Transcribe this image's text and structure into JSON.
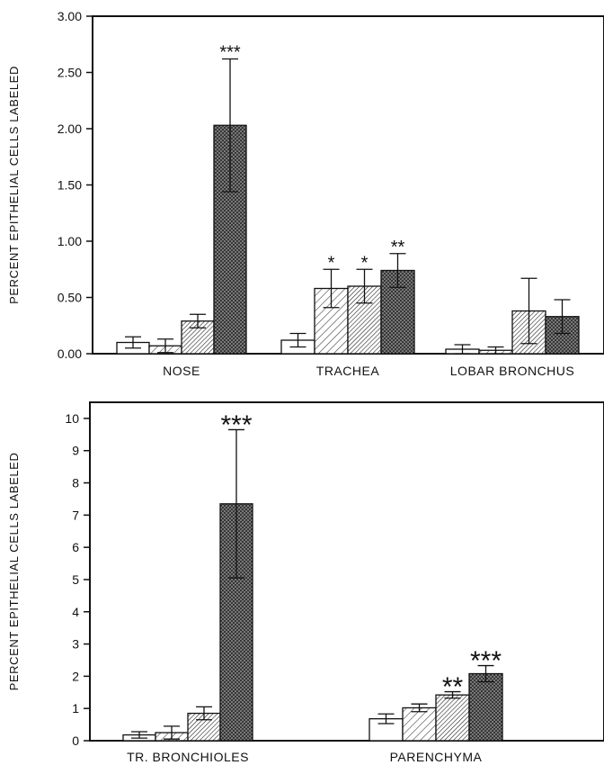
{
  "chart_data": [
    {
      "type": "bar",
      "ylabel": "PERCENT EPITHELIAL CELLS LABELED",
      "xlabel": "",
      "ylim": [
        0,
        3
      ],
      "yticks": [
        "0.00",
        "0.50",
        "1.00",
        "1.50",
        "2.00",
        "2.50",
        "3.00"
      ],
      "categories": [
        "NOSE",
        "TRACHEA",
        "LOBAR BRONCHUS"
      ],
      "series": [
        {
          "fill": "open",
          "values": [
            0.1,
            0.12,
            0.04
          ],
          "errors": [
            0.05,
            0.06,
            0.04
          ]
        },
        {
          "fill": "light-hatched",
          "values": [
            0.07,
            0.58,
            0.03
          ],
          "errors": [
            0.06,
            0.17,
            0.03
          ]
        },
        {
          "fill": "dense-hatched",
          "values": [
            0.29,
            0.6,
            0.38
          ],
          "errors": [
            0.06,
            0.15,
            0.29
          ]
        },
        {
          "fill": "cross-hatched",
          "values": [
            2.03,
            0.74,
            0.33
          ],
          "errors": [
            0.59,
            0.15,
            0.15
          ]
        }
      ],
      "significance": [
        {
          "category": 0,
          "series": 3,
          "label": "***"
        },
        {
          "category": 1,
          "series": 1,
          "label": "*"
        },
        {
          "category": 1,
          "series": 2,
          "label": "*"
        },
        {
          "category": 1,
          "series": 3,
          "label": "**"
        }
      ],
      "grid": false,
      "legend": "none"
    },
    {
      "type": "bar",
      "ylabel": "PERCENT EPITHELIAL CELLS LABELED",
      "xlabel": "",
      "ylim": [
        0,
        10.5
      ],
      "yticks": [
        "0",
        "1",
        "2",
        "3",
        "4",
        "5",
        "6",
        "7",
        "8",
        "9",
        "10"
      ],
      "categories": [
        "TR. BRONCHIOLES",
        "PARENCHYMA"
      ],
      "series": [
        {
          "fill": "open",
          "values": [
            0.18,
            0.68
          ],
          "errors": [
            0.1,
            0.15
          ]
        },
        {
          "fill": "light-hatched",
          "values": [
            0.25,
            1.02
          ],
          "errors": [
            0.2,
            0.12
          ]
        },
        {
          "fill": "dense-hatched",
          "values": [
            0.85,
            1.42
          ],
          "errors": [
            0.2,
            0.1
          ]
        },
        {
          "fill": "cross-hatched",
          "values": [
            7.35,
            2.08
          ],
          "errors": [
            2.3,
            0.25
          ]
        }
      ],
      "significance": [
        {
          "category": 0,
          "series": 3,
          "label": "***"
        },
        {
          "category": 1,
          "series": 2,
          "label": "**"
        },
        {
          "category": 1,
          "series": 3,
          "label": "***"
        }
      ],
      "grid": false,
      "legend": "none"
    }
  ]
}
